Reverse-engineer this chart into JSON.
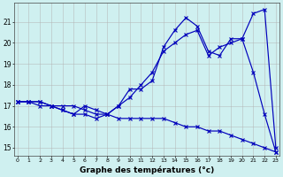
{
  "xlabel": "Graphe des températures (°c)",
  "background_color": "#cff0f0",
  "line_color": "#0000bb",
  "grid_color": "#b0b0b0",
  "x_ticks": [
    0,
    1,
    2,
    3,
    4,
    5,
    6,
    7,
    8,
    9,
    10,
    11,
    12,
    13,
    14,
    15,
    16,
    17,
    18,
    19,
    20,
    21,
    22,
    23
  ],
  "y_ticks": [
    15,
    16,
    17,
    18,
    19,
    20,
    21
  ],
  "ylim": [
    14.6,
    21.9
  ],
  "xlim": [
    -0.3,
    23.3
  ],
  "series": [
    [
      17.2,
      17.2,
      17.2,
      17.0,
      17.0,
      17.0,
      16.8,
      16.6,
      16.6,
      16.4,
      16.4,
      16.4,
      16.4,
      16.4,
      16.2,
      16.0,
      16.0,
      15.8,
      15.8,
      15.6,
      15.4,
      15.2,
      15.0,
      14.8
    ],
    [
      17.2,
      17.2,
      17.2,
      17.0,
      16.8,
      16.6,
      16.6,
      16.4,
      16.6,
      17.0,
      17.8,
      17.8,
      18.2,
      19.8,
      20.6,
      21.2,
      20.8,
      19.6,
      19.4,
      20.2,
      20.2,
      18.6,
      16.6,
      14.8
    ],
    [
      17.2,
      17.2,
      17.0,
      17.0,
      16.8,
      16.6,
      17.0,
      16.8,
      16.6,
      17.0,
      17.4,
      18.0,
      18.6,
      19.6,
      20.0,
      20.4,
      20.6,
      19.4,
      19.8,
      20.0,
      20.2,
      21.4,
      21.6,
      15.0
    ]
  ]
}
